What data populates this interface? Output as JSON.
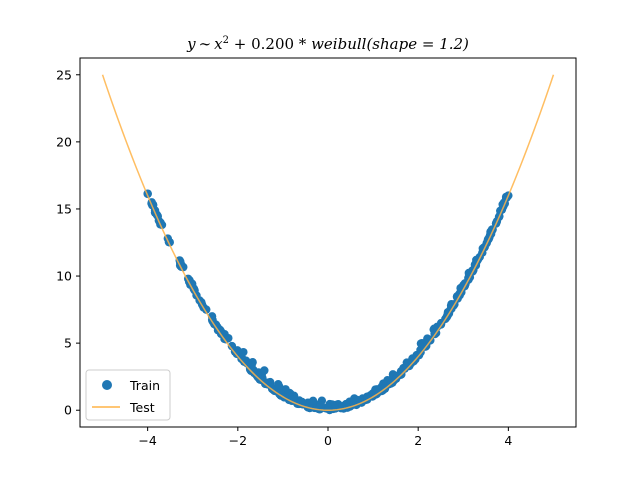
{
  "chart_data": {
    "type": "scatter",
    "title": "y ~ x² + 0.200 * weibull(shape = 1.2)",
    "title_parts": {
      "lhs": "y",
      "tilde": "∼",
      "var": "x",
      "exp": "2",
      "rest": " + 0.200 * ",
      "fn": "weibull",
      "arg": "(shape = 1.2)"
    },
    "xlabel": "",
    "ylabel": "",
    "xlim": [
      -5.5,
      5.5
    ],
    "ylim": [
      -1.25,
      26.25
    ],
    "xticks": [
      -4,
      -2,
      0,
      2,
      4
    ],
    "xtick_labels": [
      "−4",
      "−2",
      "0",
      "2",
      "4"
    ],
    "yticks": [
      0,
      5,
      10,
      15,
      20,
      25
    ],
    "ytick_labels": [
      "0",
      "5",
      "10",
      "15",
      "20",
      "25"
    ],
    "grid": false,
    "legend_location": "lower-left",
    "series": [
      {
        "name": "Train",
        "kind": "scatter",
        "color": "#1f77b4",
        "x_range": [
          -4,
          4
        ],
        "model": "y = x^2 + 0.2*weibull(1.2)",
        "n_points": 400
      },
      {
        "name": "Test",
        "kind": "line",
        "color": "#ffb347",
        "x_range": [
          -5,
          5
        ],
        "model": "y = x^2"
      }
    ]
  }
}
